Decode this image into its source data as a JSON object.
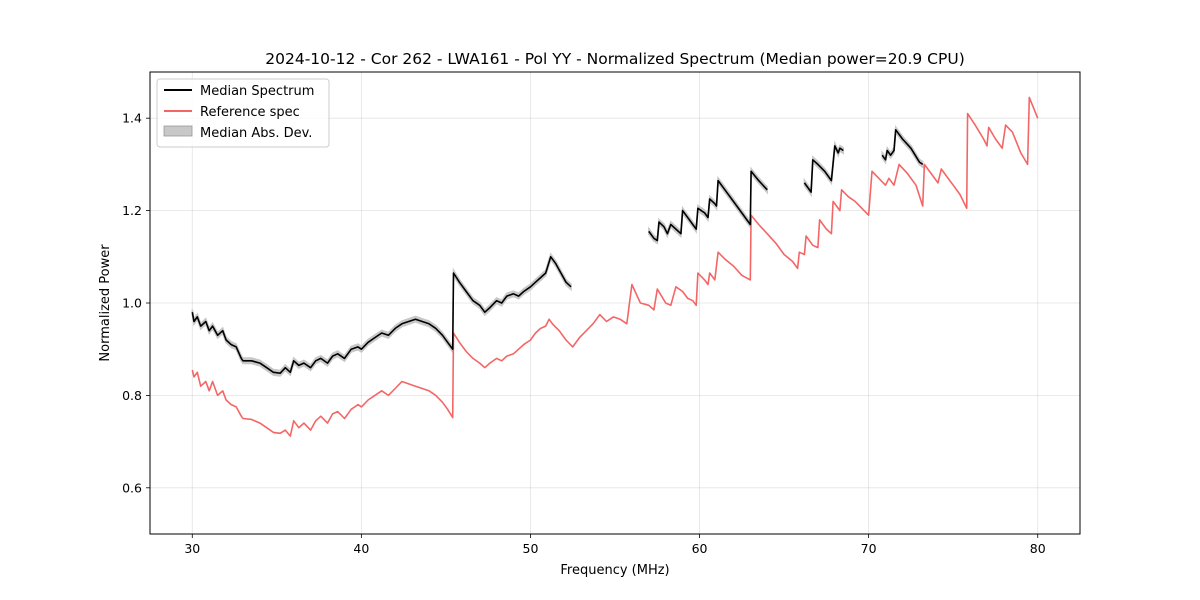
{
  "chart_data": {
    "type": "line",
    "title": "2024-10-12 - Cor 262 - LWA161 - Pol YY - Normalized Spectrum (Median power=20.9 CPU)",
    "xlabel": "Frequency (MHz)",
    "ylabel": "Normalized Power",
    "xlim": [
      27.5,
      82.5
    ],
    "ylim": [
      0.5,
      1.5
    ],
    "xticks": [
      30,
      40,
      50,
      60,
      70,
      80
    ],
    "yticks": [
      0.6,
      0.8,
      1.0,
      1.2,
      1.4
    ],
    "xtick_labels": [
      "30",
      "40",
      "50",
      "60",
      "70",
      "80"
    ],
    "ytick_labels": [
      "0.6",
      "0.8",
      "1.0",
      "1.2",
      "1.4"
    ],
    "grid": true,
    "legend": {
      "position": "top-left",
      "entries": [
        "Median Spectrum",
        "Reference spec",
        "Median Abs. Dev."
      ]
    },
    "colors": {
      "median": "#000000",
      "reference": "#f46666",
      "mad": "#c8c8c8"
    },
    "series": [
      {
        "name": "Median Spectrum",
        "segments": [
          [
            [
              30,
              0.98
            ],
            [
              30.1,
              0.96
            ],
            [
              30.3,
              0.97
            ],
            [
              30.5,
              0.95
            ],
            [
              30.8,
              0.96
            ],
            [
              31,
              0.94
            ],
            [
              31.2,
              0.95
            ],
            [
              31.5,
              0.93
            ],
            [
              31.8,
              0.94
            ],
            [
              32,
              0.92
            ],
            [
              32.3,
              0.91
            ],
            [
              32.6,
              0.905
            ],
            [
              32.9,
              0.88
            ],
            [
              33,
              0.875
            ],
            [
              33.5,
              0.875
            ],
            [
              34,
              0.87
            ],
            [
              34.4,
              0.86
            ],
            [
              34.8,
              0.85
            ],
            [
              35.2,
              0.848
            ],
            [
              35.5,
              0.86
            ],
            [
              35.8,
              0.85
            ],
            [
              36,
              0.875
            ],
            [
              36.3,
              0.865
            ],
            [
              36.6,
              0.87
            ],
            [
              37,
              0.86
            ],
            [
              37.3,
              0.875
            ],
            [
              37.6,
              0.88
            ],
            [
              38,
              0.87
            ],
            [
              38.3,
              0.885
            ],
            [
              38.6,
              0.89
            ],
            [
              39,
              0.88
            ],
            [
              39.4,
              0.9
            ],
            [
              39.8,
              0.905
            ],
            [
              40,
              0.9
            ],
            [
              40.4,
              0.915
            ],
            [
              40.8,
              0.925
            ],
            [
              41.2,
              0.935
            ],
            [
              41.6,
              0.93
            ],
            [
              42,
              0.945
            ],
            [
              42.4,
              0.955
            ],
            [
              42.8,
              0.96
            ],
            [
              43.2,
              0.965
            ],
            [
              43.6,
              0.96
            ],
            [
              44,
              0.955
            ],
            [
              44.4,
              0.945
            ],
            [
              44.8,
              0.93
            ],
            [
              45.1,
              0.915
            ],
            [
              45.4,
              0.9
            ],
            [
              45.45,
              1.065
            ],
            [
              45.8,
              1.045
            ],
            [
              46.2,
              1.025
            ],
            [
              46.6,
              1.005
            ],
            [
              47,
              0.995
            ],
            [
              47.3,
              0.98
            ],
            [
              47.6,
              0.99
            ],
            [
              48,
              1.005
            ],
            [
              48.3,
              1.0
            ],
            [
              48.6,
              1.015
            ],
            [
              49,
              1.02
            ],
            [
              49.3,
              1.015
            ],
            [
              49.6,
              1.025
            ],
            [
              50,
              1.035
            ],
            [
              50.3,
              1.045
            ],
            [
              50.6,
              1.055
            ],
            [
              50.9,
              1.065
            ],
            [
              51.2,
              1.1
            ],
            [
              51.5,
              1.085
            ],
            [
              51.8,
              1.065
            ],
            [
              52.1,
              1.045
            ],
            [
              52.4,
              1.035
            ]
          ],
          [
            [
              57,
              1.155
            ],
            [
              57.3,
              1.14
            ],
            [
              57.5,
              1.135
            ],
            [
              57.6,
              1.175
            ],
            [
              57.9,
              1.165
            ],
            [
              58.1,
              1.15
            ],
            [
              58.3,
              1.17
            ],
            [
              58.6,
              1.16
            ],
            [
              58.9,
              1.15
            ],
            [
              59,
              1.2
            ],
            [
              59.3,
              1.185
            ],
            [
              59.6,
              1.17
            ],
            [
              59.8,
              1.16
            ],
            [
              59.9,
              1.205
            ],
            [
              60.3,
              1.195
            ],
            [
              60.5,
              1.185
            ],
            [
              60.6,
              1.225
            ],
            [
              60.9,
              1.215
            ],
            [
              61,
              1.21
            ],
            [
              61.1,
              1.265
            ],
            [
              61.5,
              1.245
            ],
            [
              62,
              1.22
            ],
            [
              62.5,
              1.195
            ],
            [
              63,
              1.17
            ],
            [
              63.05,
              1.285
            ],
            [
              63.5,
              1.265
            ],
            [
              64,
              1.245
            ]
          ],
          [
            [
              66.2,
              1.26
            ],
            [
              66.4,
              1.25
            ],
            [
              66.6,
              1.24
            ],
            [
              66.7,
              1.31
            ],
            [
              67,
              1.3
            ],
            [
              67.4,
              1.285
            ],
            [
              67.8,
              1.265
            ],
            [
              68,
              1.34
            ],
            [
              68.2,
              1.325
            ],
            [
              68.3,
              1.335
            ],
            [
              68.5,
              1.33
            ]
          ],
          [
            [
              70.8,
              1.32
            ],
            [
              71,
              1.31
            ],
            [
              71.1,
              1.33
            ],
            [
              71.3,
              1.32
            ],
            [
              71.5,
              1.33
            ],
            [
              71.6,
              1.375
            ],
            [
              72,
              1.355
            ],
            [
              72.5,
              1.335
            ],
            [
              73,
              1.305
            ],
            [
              73.2,
              1.3
            ]
          ]
        ]
      },
      {
        "name": "Reference spec",
        "segments": [
          [
            [
              30,
              0.855
            ],
            [
              30.1,
              0.84
            ],
            [
              30.3,
              0.85
            ],
            [
              30.5,
              0.82
            ],
            [
              30.8,
              0.83
            ],
            [
              31,
              0.81
            ],
            [
              31.2,
              0.83
            ],
            [
              31.5,
              0.8
            ],
            [
              31.8,
              0.81
            ],
            [
              32,
              0.79
            ],
            [
              32.3,
              0.78
            ],
            [
              32.6,
              0.775
            ],
            [
              32.9,
              0.755
            ],
            [
              33,
              0.75
            ],
            [
              33.5,
              0.748
            ],
            [
              34,
              0.74
            ],
            [
              34.4,
              0.73
            ],
            [
              34.8,
              0.72
            ],
            [
              35.2,
              0.718
            ],
            [
              35.5,
              0.725
            ],
            [
              35.8,
              0.712
            ],
            [
              36,
              0.745
            ],
            [
              36.3,
              0.73
            ],
            [
              36.6,
              0.74
            ],
            [
              37,
              0.725
            ],
            [
              37.3,
              0.745
            ],
            [
              37.6,
              0.755
            ],
            [
              38,
              0.74
            ],
            [
              38.3,
              0.76
            ],
            [
              38.6,
              0.765
            ],
            [
              39,
              0.75
            ],
            [
              39.4,
              0.77
            ],
            [
              39.8,
              0.78
            ],
            [
              40,
              0.775
            ],
            [
              40.4,
              0.79
            ],
            [
              40.8,
              0.8
            ],
            [
              41.2,
              0.81
            ],
            [
              41.6,
              0.8
            ],
            [
              42,
              0.815
            ],
            [
              42.4,
              0.83
            ],
            [
              42.8,
              0.825
            ],
            [
              43.2,
              0.82
            ],
            [
              43.6,
              0.815
            ],
            [
              44,
              0.81
            ],
            [
              44.4,
              0.8
            ],
            [
              44.8,
              0.785
            ],
            [
              45.1,
              0.77
            ],
            [
              45.4,
              0.752
            ],
            [
              45.45,
              0.935
            ],
            [
              45.8,
              0.915
            ],
            [
              46.2,
              0.895
            ],
            [
              46.6,
              0.88
            ],
            [
              47,
              0.87
            ],
            [
              47.3,
              0.86
            ],
            [
              47.6,
              0.87
            ],
            [
              48,
              0.88
            ],
            [
              48.3,
              0.875
            ],
            [
              48.6,
              0.885
            ],
            [
              49,
              0.89
            ],
            [
              49.3,
              0.9
            ],
            [
              49.6,
              0.91
            ],
            [
              50,
              0.92
            ],
            [
              50.3,
              0.935
            ],
            [
              50.6,
              0.945
            ],
            [
              50.9,
              0.95
            ],
            [
              51.1,
              0.965
            ],
            [
              51.3,
              0.955
            ],
            [
              51.7,
              0.94
            ],
            [
              52.1,
              0.92
            ],
            [
              52.5,
              0.905
            ],
            [
              52.9,
              0.925
            ],
            [
              53.3,
              0.94
            ],
            [
              53.7,
              0.955
            ],
            [
              54.1,
              0.975
            ],
            [
              54.5,
              0.96
            ],
            [
              54.9,
              0.97
            ],
            [
              55.3,
              0.965
            ],
            [
              55.7,
              0.955
            ],
            [
              56,
              1.04
            ],
            [
              56.5,
              1.0
            ],
            [
              57,
              0.995
            ],
            [
              57.3,
              0.985
            ],
            [
              57.5,
              1.03
            ],
            [
              58,
              1.0
            ],
            [
              58.3,
              0.995
            ],
            [
              58.6,
              1.035
            ],
            [
              59,
              1.025
            ],
            [
              59.3,
              1.01
            ],
            [
              59.6,
              1.005
            ],
            [
              59.8,
              0.995
            ],
            [
              59.9,
              1.065
            ],
            [
              60.3,
              1.05
            ],
            [
              60.5,
              1.04
            ],
            [
              60.6,
              1.065
            ],
            [
              60.9,
              1.05
            ],
            [
              61.1,
              1.11
            ],
            [
              61.5,
              1.095
            ],
            [
              62,
              1.08
            ],
            [
              62.5,
              1.06
            ],
            [
              63,
              1.05
            ],
            [
              63.05,
              1.19
            ],
            [
              63.5,
              1.17
            ],
            [
              64,
              1.15
            ],
            [
              64.5,
              1.13
            ],
            [
              65,
              1.105
            ],
            [
              65.5,
              1.09
            ],
            [
              65.8,
              1.075
            ],
            [
              65.9,
              1.11
            ],
            [
              66.2,
              1.105
            ],
            [
              66.3,
              1.145
            ],
            [
              66.7,
              1.125
            ],
            [
              67,
              1.12
            ],
            [
              67.1,
              1.18
            ],
            [
              67.5,
              1.16
            ],
            [
              67.8,
              1.15
            ],
            [
              67.9,
              1.22
            ],
            [
              68.3,
              1.2
            ],
            [
              68.4,
              1.245
            ],
            [
              68.8,
              1.23
            ],
            [
              69.2,
              1.22
            ],
            [
              69.6,
              1.205
            ],
            [
              70,
              1.19
            ],
            [
              70.2,
              1.285
            ],
            [
              70.6,
              1.27
            ],
            [
              71,
              1.255
            ],
            [
              71.2,
              1.27
            ],
            [
              71.5,
              1.255
            ],
            [
              71.8,
              1.3
            ],
            [
              72.3,
              1.28
            ],
            [
              72.8,
              1.255
            ],
            [
              73.2,
              1.21
            ],
            [
              73.3,
              1.3
            ],
            [
              73.7,
              1.28
            ],
            [
              74.1,
              1.26
            ],
            [
              74.3,
              1.29
            ],
            [
              74.6,
              1.275
            ],
            [
              75,
              1.255
            ],
            [
              75.4,
              1.235
            ],
            [
              75.8,
              1.205
            ],
            [
              75.85,
              1.41
            ],
            [
              76.3,
              1.385
            ],
            [
              76.8,
              1.355
            ],
            [
              77,
              1.34
            ],
            [
              77.1,
              1.38
            ],
            [
              77.5,
              1.355
            ],
            [
              77.9,
              1.335
            ],
            [
              78.1,
              1.385
            ],
            [
              78.5,
              1.37
            ],
            [
              79,
              1.325
            ],
            [
              79.4,
              1.3
            ],
            [
              79.5,
              1.445
            ],
            [
              80,
              1.4
            ]
          ]
        ]
      }
    ],
    "mad_band": {
      "name": "Median Abs. Dev.",
      "half_width": 0.006
    }
  }
}
